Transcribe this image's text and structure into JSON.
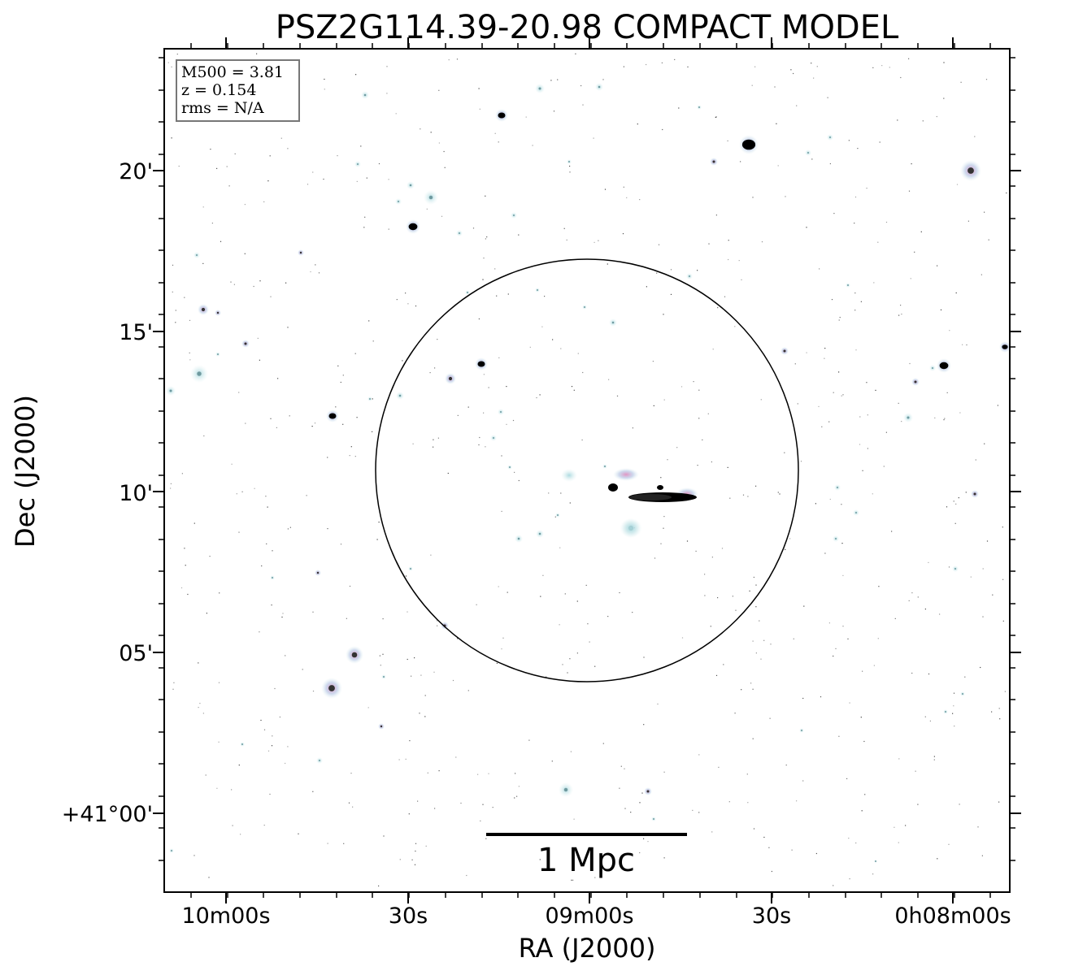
{
  "figure": {
    "title": "PSZ2G114.39-20.98 COMPACT MODEL",
    "x_axis_label": "RA (J2000)",
    "y_axis_label": "Dec (J2000)",
    "x_tick_labels": [
      "10m00s",
      "30s",
      "09m00s",
      "30s",
      "0h08m00s"
    ],
    "y_tick_labels": [
      "20'",
      "15'",
      "10'",
      "05'",
      "+41°00'"
    ],
    "info_box": {
      "line1": "M500 = 3.81",
      "line2": "z = 0.154",
      "line3": "rms = N/A"
    },
    "scale_bar_label": "1 Mpc",
    "colors": {
      "background": "#ffffff",
      "frame": "#000000",
      "source_halo": "#b9dfe3",
      "source_core": "#d9a3c8",
      "source_dense": "#000000"
    }
  }
}
